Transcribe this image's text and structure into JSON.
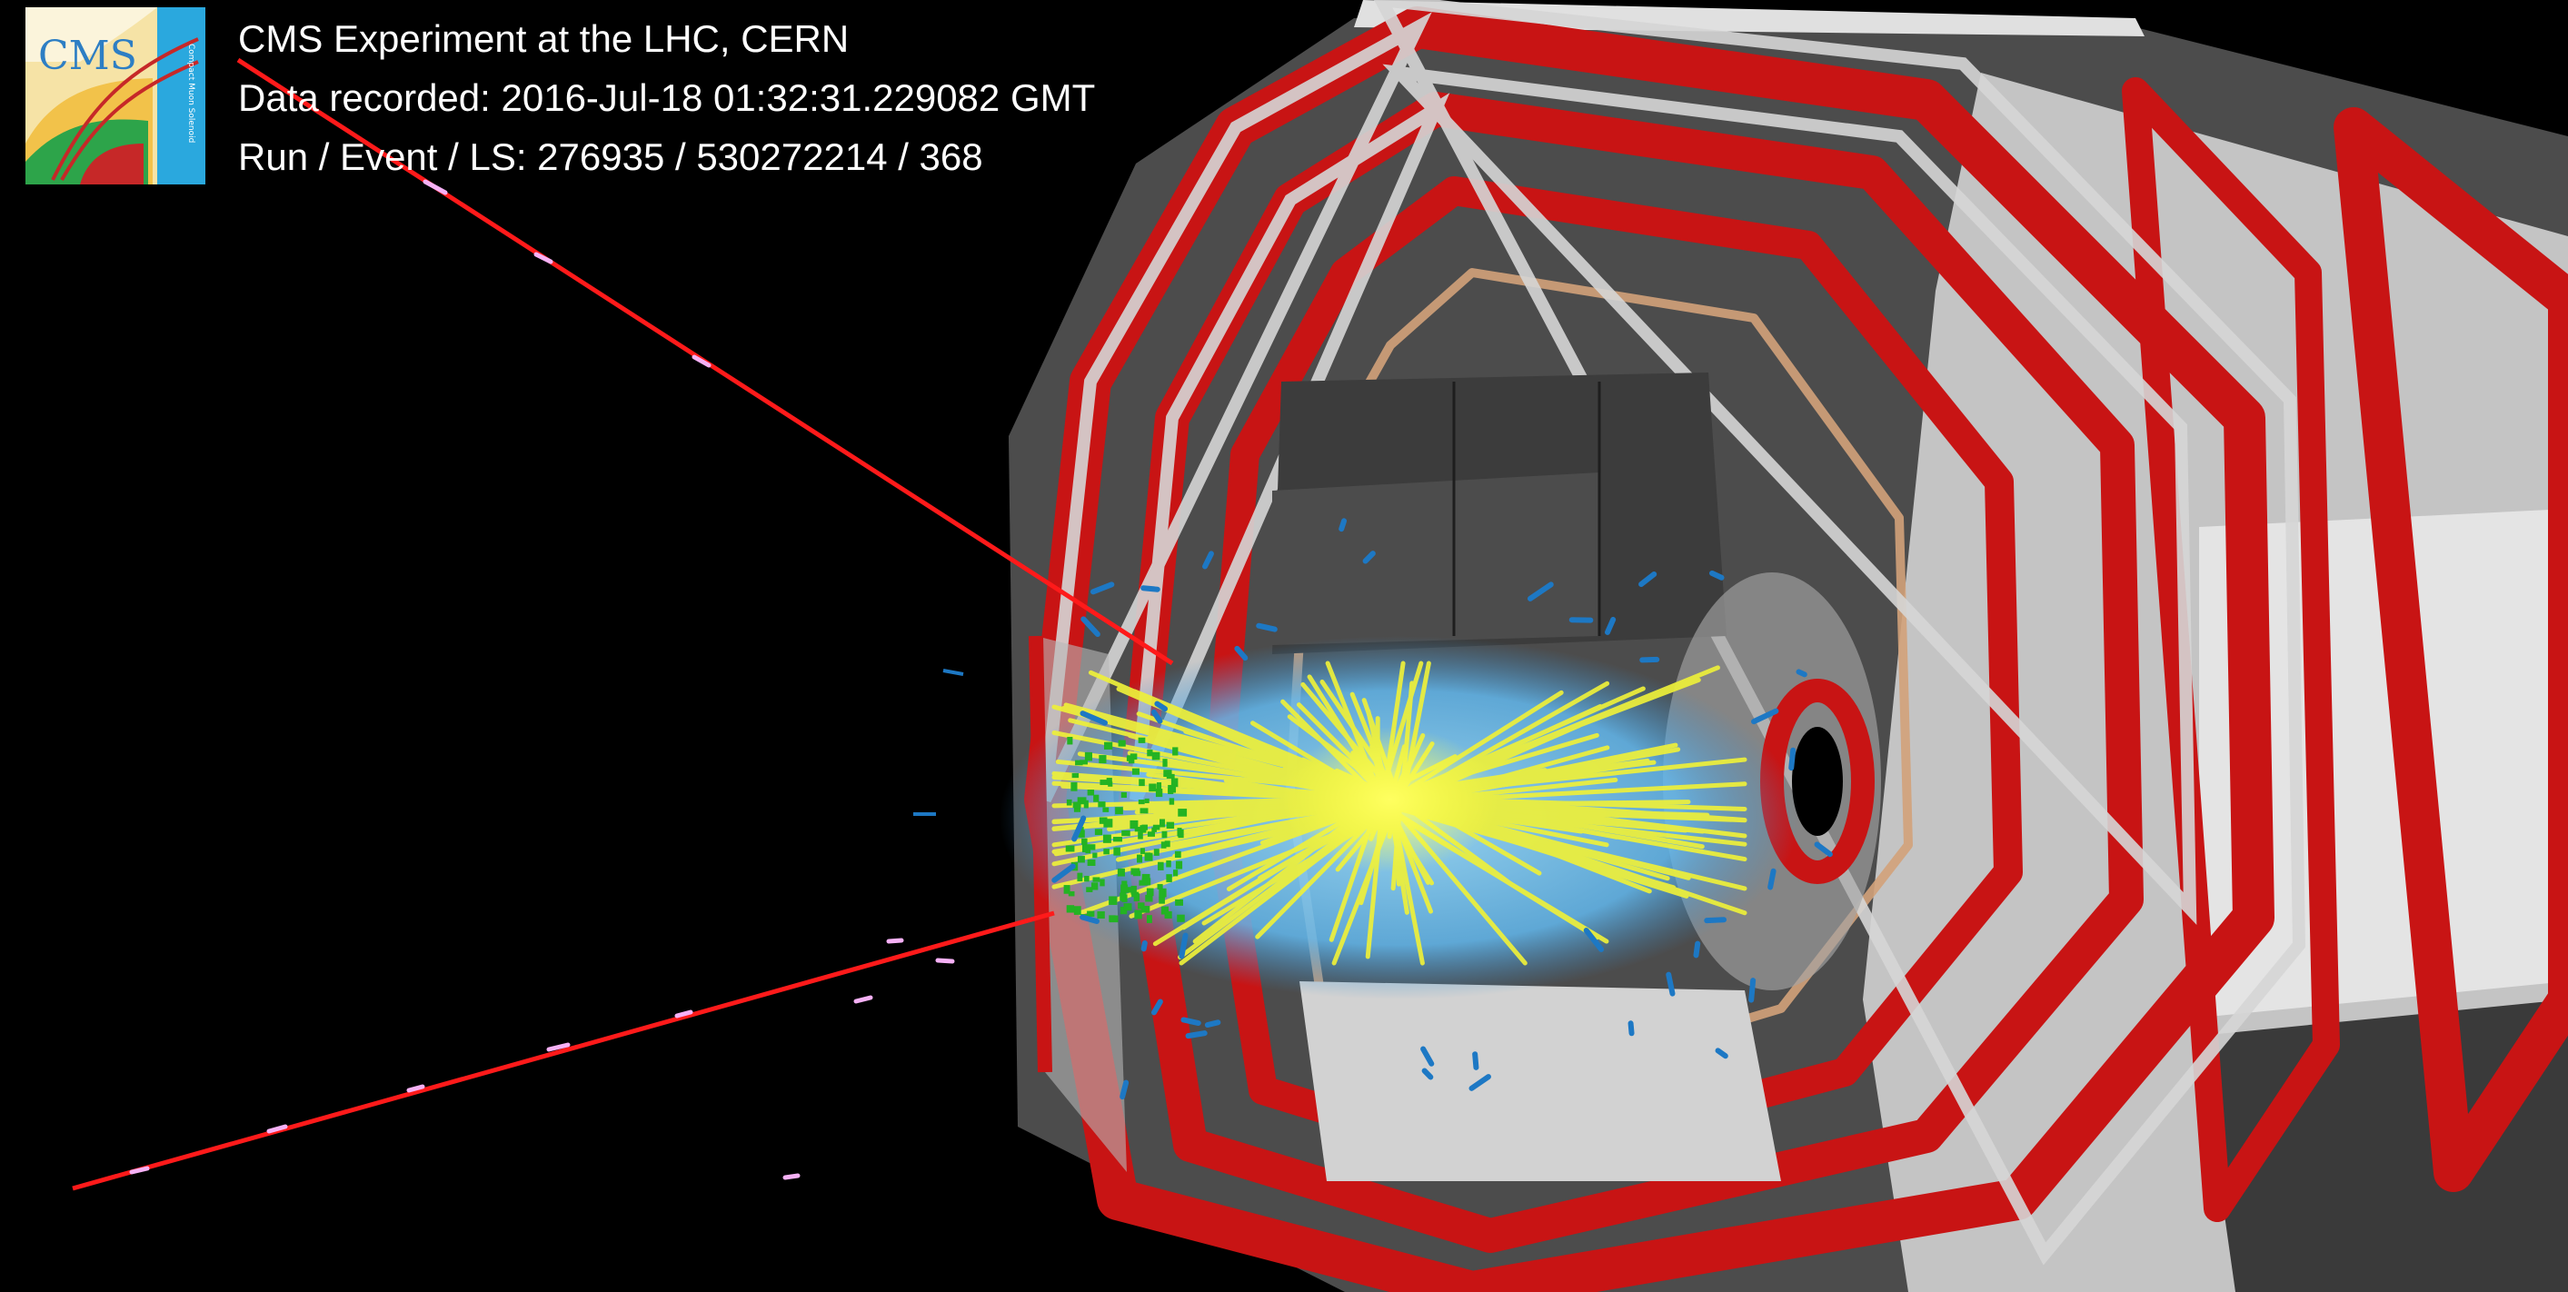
{
  "event_info": {
    "experiment": "CMS Experiment at the LHC, CERN",
    "recorded": "Data recorded: 2016-Jul-18 01:32:31.229082 GMT",
    "run_event_ls": "Run / Event / LS: 276935 / 530272214 / 368"
  },
  "logo": {
    "text": "CMS",
    "subtitle": "Compact Muon Solenoid"
  },
  "colors": {
    "background": "#000000",
    "muon_track": "#ff1a1a",
    "muon_chamber": "#c81414",
    "detector_frame": "#c8c8c8",
    "tracks": "#f0f02a",
    "energy_deposit": "#6fc6f2",
    "hits": "#1ea81e"
  }
}
